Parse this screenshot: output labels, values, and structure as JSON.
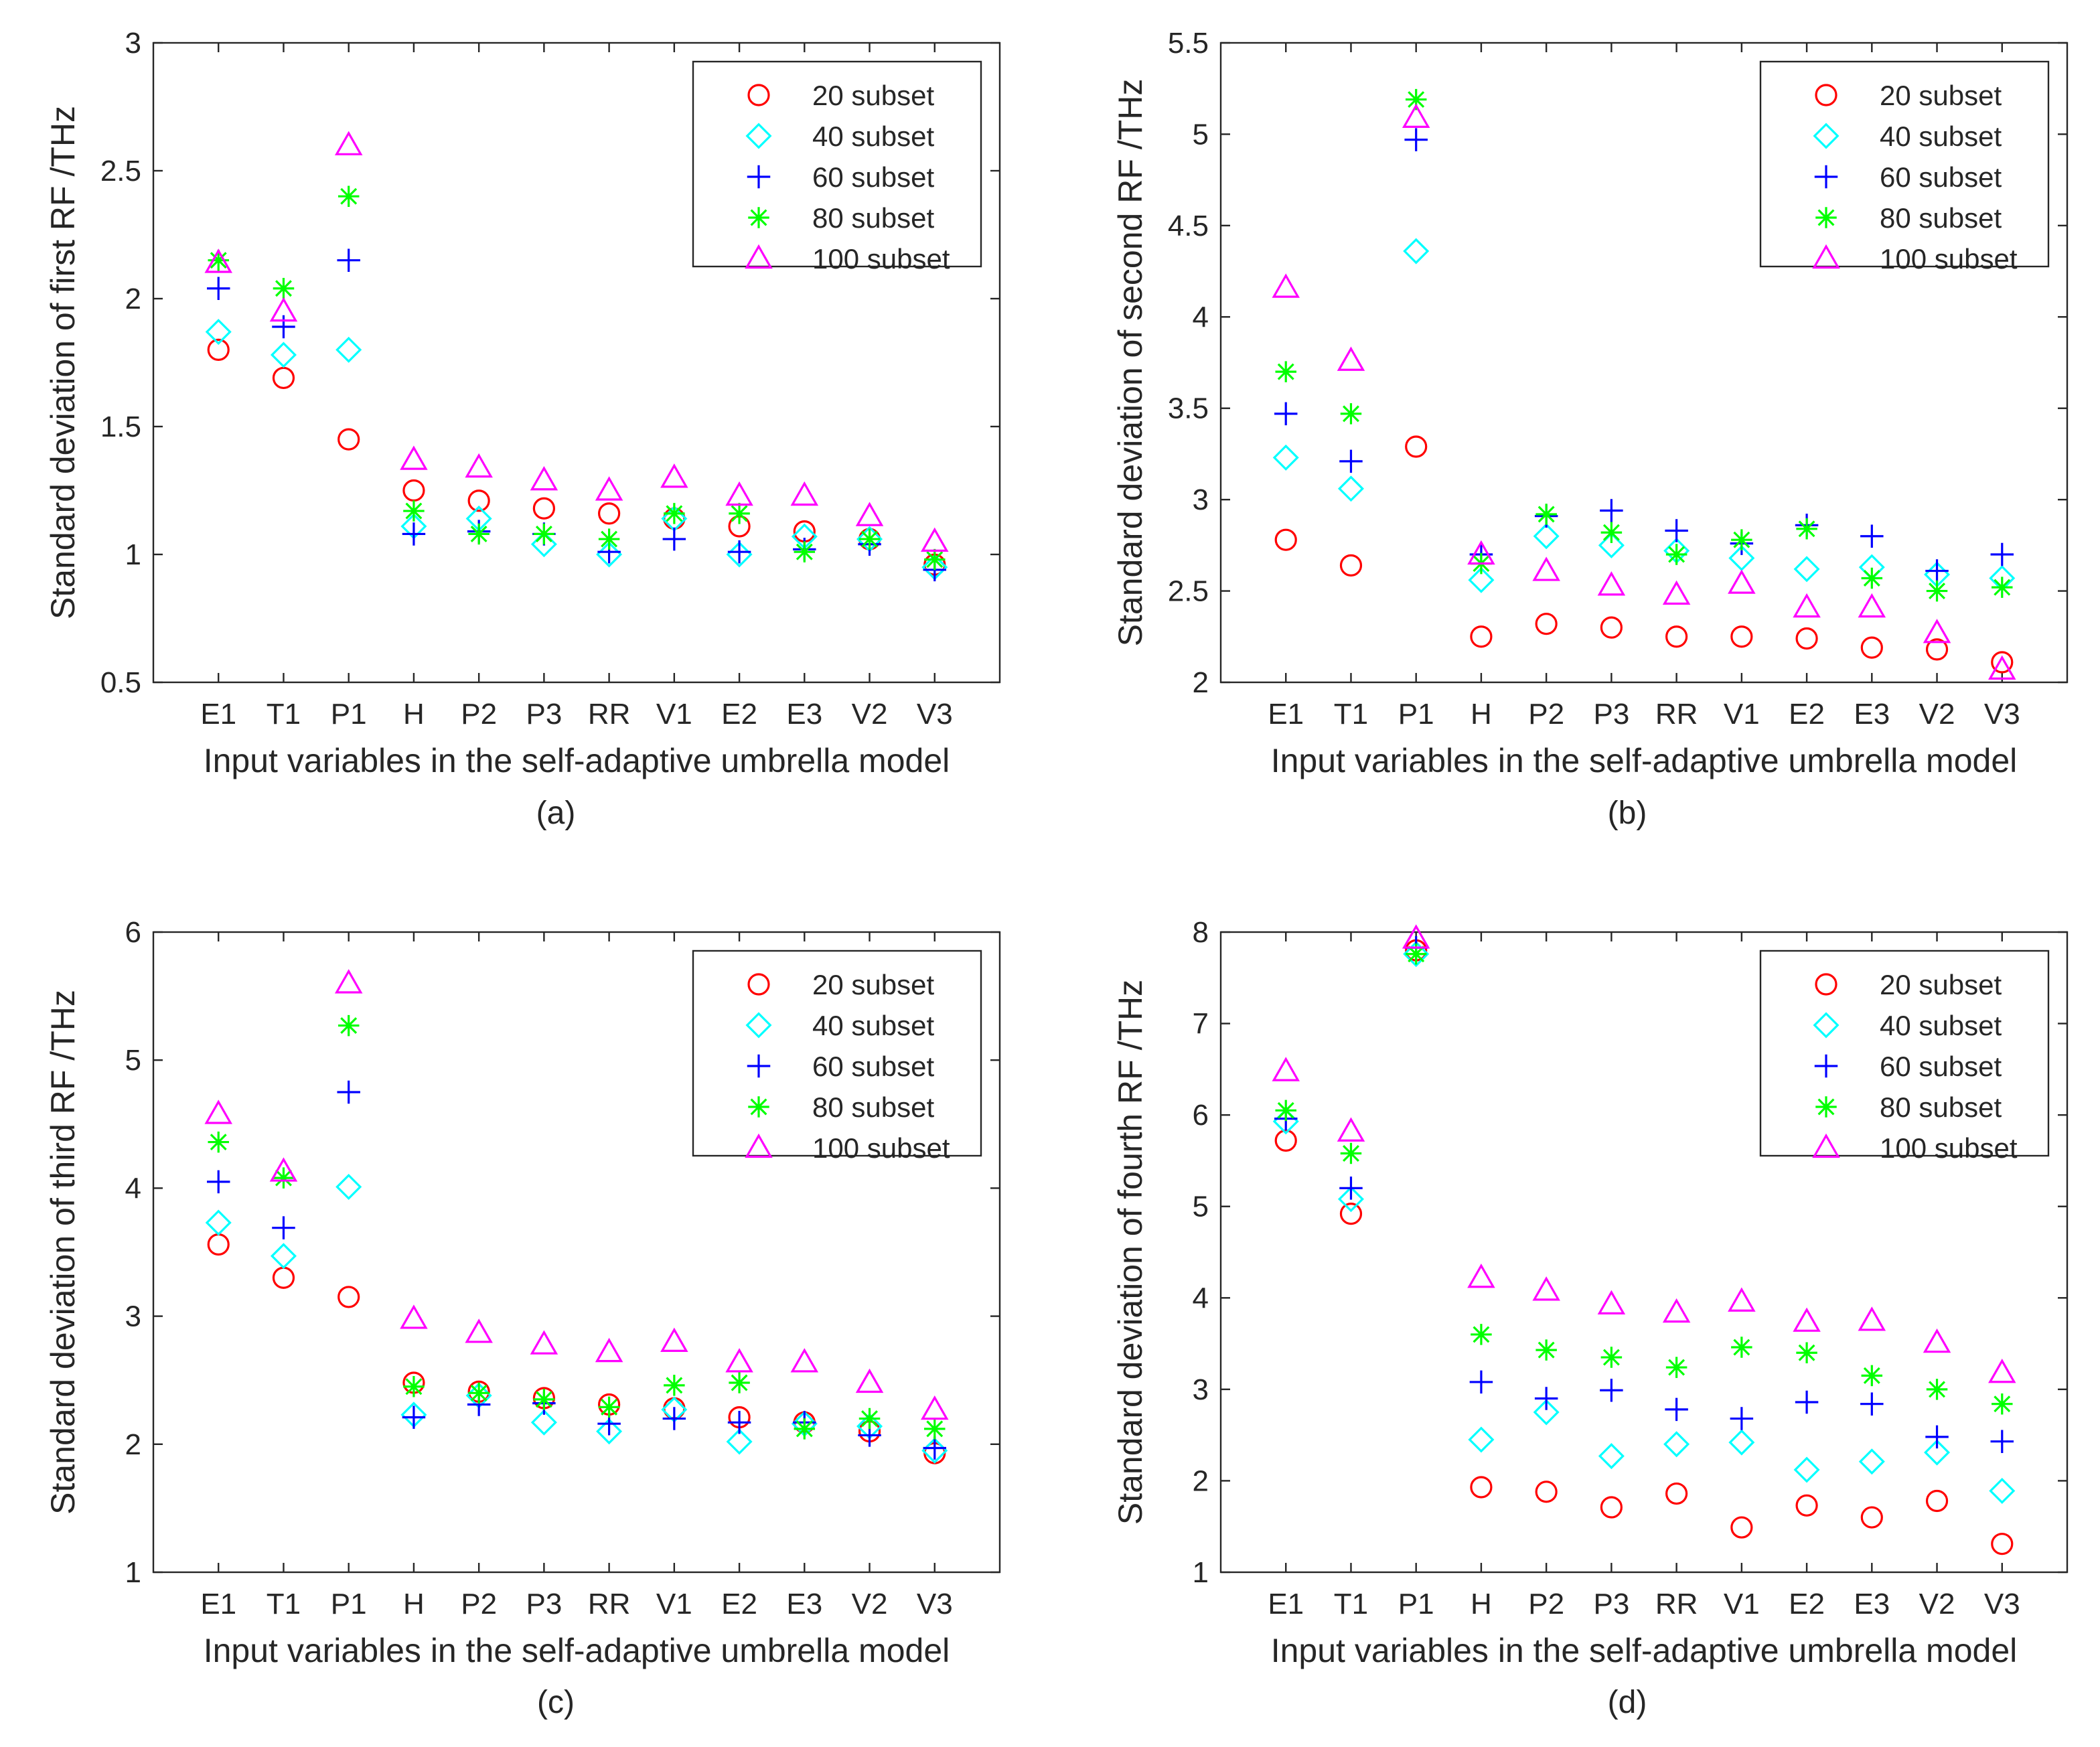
{
  "xlabel": "Input variables in the self-adaptive umbrella model",
  "colors": {
    "20": "#ff0000",
    "40": "#00ffff",
    "60": "#0000ff",
    "80": "#00ff00",
    "100": "#ff00ff"
  },
  "legend": [
    "20 subset",
    "40 subset",
    "60 subset",
    "80 subset",
    "100 subset"
  ],
  "chart_data": [
    {
      "type": "scatter",
      "caption": "(a)",
      "ylabel": "Standard deviation of first RF /THz",
      "xlabel": "Input variables in the self-adaptive umbrella model",
      "categories": [
        "E1",
        "T1",
        "P1",
        "H",
        "P2",
        "P3",
        "RR",
        "V1",
        "E2",
        "E3",
        "V2",
        "V3"
      ],
      "ylim": [
        0.5,
        3
      ],
      "yticks": [
        "0.5",
        "1",
        "1.5",
        "2",
        "2.5",
        "3"
      ],
      "legend_position": "top-right",
      "series": [
        {
          "name": "20 subset",
          "marker": "circle",
          "values": [
            1.8,
            1.69,
            1.45,
            1.25,
            1.21,
            1.18,
            1.16,
            1.14,
            1.11,
            1.09,
            1.06,
            0.96
          ]
        },
        {
          "name": "40 subset",
          "marker": "diamond",
          "values": [
            1.87,
            1.78,
            1.8,
            1.11,
            1.14,
            1.04,
            1.0,
            1.14,
            1.0,
            1.07,
            1.06,
            0.95
          ]
        },
        {
          "name": "60 subset",
          "marker": "plus",
          "values": [
            2.04,
            1.89,
            2.15,
            1.08,
            1.09,
            1.08,
            1.01,
            1.06,
            1.01,
            1.02,
            1.04,
            0.94
          ]
        },
        {
          "name": "80 subset",
          "marker": "asterisk",
          "values": [
            2.15,
            2.04,
            2.4,
            1.17,
            1.08,
            1.08,
            1.06,
            1.16,
            1.16,
            1.01,
            1.06,
            0.98
          ]
        },
        {
          "name": "100 subset",
          "marker": "triangle",
          "values": [
            2.14,
            1.95,
            2.6,
            1.37,
            1.34,
            1.29,
            1.25,
            1.3,
            1.23,
            1.23,
            1.15,
            1.05
          ]
        }
      ]
    },
    {
      "type": "scatter",
      "caption": "(b)",
      "ylabel": "Standard deviation of second RF /THz",
      "xlabel": "Input variables in the self-adaptive umbrella model",
      "categories": [
        "E1",
        "T1",
        "P1",
        "H",
        "P2",
        "P3",
        "RR",
        "V1",
        "E2",
        "E3",
        "V2",
        "V3"
      ],
      "ylim": [
        2,
        5.5
      ],
      "yticks": [
        "2",
        "2.5",
        "3",
        "3.5",
        "4",
        "4.5",
        "5",
        "5.5"
      ],
      "legend_position": "top-right",
      "series": [
        {
          "name": "20 subset",
          "marker": "circle",
          "values": [
            2.78,
            2.64,
            3.29,
            2.25,
            2.32,
            2.3,
            2.25,
            2.25,
            2.24,
            2.19,
            2.18,
            2.11
          ]
        },
        {
          "name": "40 subset",
          "marker": "diamond",
          "values": [
            3.23,
            3.06,
            4.36,
            2.56,
            2.8,
            2.75,
            2.72,
            2.68,
            2.62,
            2.63,
            2.59,
            2.57
          ]
        },
        {
          "name": "60 subset",
          "marker": "plus",
          "values": [
            3.47,
            3.21,
            4.97,
            2.7,
            2.91,
            2.94,
            2.83,
            2.76,
            2.86,
            2.8,
            2.61,
            2.7
          ]
        },
        {
          "name": "80 subset",
          "marker": "asterisk",
          "values": [
            3.7,
            3.47,
            5.19,
            2.65,
            2.92,
            2.82,
            2.7,
            2.78,
            2.84,
            2.57,
            2.5,
            2.52
          ]
        },
        {
          "name": "100 subset",
          "marker": "triangle",
          "values": [
            4.16,
            3.76,
            5.09,
            2.7,
            2.61,
            2.53,
            2.48,
            2.54,
            2.41,
            2.41,
            2.27,
            2.07
          ]
        }
      ]
    },
    {
      "type": "scatter",
      "caption": "(c)",
      "ylabel": "Standard deviation of third RF /THz",
      "xlabel": "Input variables in the self-adaptive umbrella model",
      "categories": [
        "E1",
        "T1",
        "P1",
        "H",
        "P2",
        "P3",
        "RR",
        "V1",
        "E2",
        "E3",
        "V2",
        "V3"
      ],
      "ylim": [
        1,
        6
      ],
      "yticks": [
        "1",
        "2",
        "3",
        "4",
        "5",
        "6"
      ],
      "legend_position": "top-right",
      "series": [
        {
          "name": "20 subset",
          "marker": "circle",
          "values": [
            3.56,
            3.3,
            3.15,
            2.48,
            2.41,
            2.36,
            2.31,
            2.28,
            2.21,
            2.17,
            2.1,
            1.93
          ]
        },
        {
          "name": "40 subset",
          "marker": "diamond",
          "values": [
            3.73,
            3.47,
            4.01,
            2.23,
            2.38,
            2.17,
            2.1,
            2.27,
            2.02,
            2.16,
            2.14,
            1.95
          ]
        },
        {
          "name": "60 subset",
          "marker": "plus",
          "values": [
            4.05,
            3.69,
            4.75,
            2.21,
            2.31,
            2.32,
            2.16,
            2.2,
            2.17,
            2.17,
            2.07,
            1.97
          ]
        },
        {
          "name": "80 subset",
          "marker": "asterisk",
          "values": [
            4.36,
            4.08,
            5.27,
            2.45,
            2.4,
            2.35,
            2.29,
            2.46,
            2.48,
            2.12,
            2.2,
            2.12
          ]
        },
        {
          "name": "100 subset",
          "marker": "triangle",
          "values": [
            4.58,
            4.13,
            5.6,
            2.98,
            2.87,
            2.78,
            2.72,
            2.8,
            2.64,
            2.64,
            2.48,
            2.27
          ]
        }
      ]
    },
    {
      "type": "scatter",
      "caption": "(d)",
      "ylabel": "Standard deviation of fourth RF /THz",
      "xlabel": "Input variables in the self-adaptive umbrella model",
      "categories": [
        "E1",
        "T1",
        "P1",
        "H",
        "P2",
        "P3",
        "RR",
        "V1",
        "E2",
        "E3",
        "V2",
        "V3"
      ],
      "ylim": [
        1,
        8
      ],
      "yticks": [
        "1",
        "2",
        "3",
        "4",
        "5",
        "6",
        "7",
        "8"
      ],
      "legend_position": "top-right",
      "series": [
        {
          "name": "20 subset",
          "marker": "circle",
          "values": [
            5.72,
            4.92,
            7.8,
            1.93,
            1.88,
            1.71,
            1.86,
            1.49,
            1.73,
            1.6,
            1.78,
            1.31
          ]
        },
        {
          "name": "40 subset",
          "marker": "diamond",
          "values": [
            5.93,
            5.08,
            7.76,
            2.45,
            2.75,
            2.27,
            2.4,
            2.42,
            2.12,
            2.21,
            2.31,
            1.89
          ]
        },
        {
          "name": "60 subset",
          "marker": "plus",
          "values": [
            5.96,
            5.2,
            7.83,
            3.08,
            2.9,
            2.99,
            2.78,
            2.68,
            2.86,
            2.84,
            2.48,
            2.43
          ]
        },
        {
          "name": "80 subset",
          "marker": "asterisk",
          "values": [
            6.05,
            5.58,
            7.76,
            3.6,
            3.43,
            3.35,
            3.24,
            3.46,
            3.4,
            3.15,
            3.0,
            2.84
          ]
        },
        {
          "name": "100 subset",
          "marker": "triangle",
          "values": [
            6.48,
            5.82,
            7.93,
            4.22,
            4.08,
            3.93,
            3.84,
            3.96,
            3.74,
            3.75,
            3.51,
            3.18
          ]
        }
      ]
    }
  ]
}
